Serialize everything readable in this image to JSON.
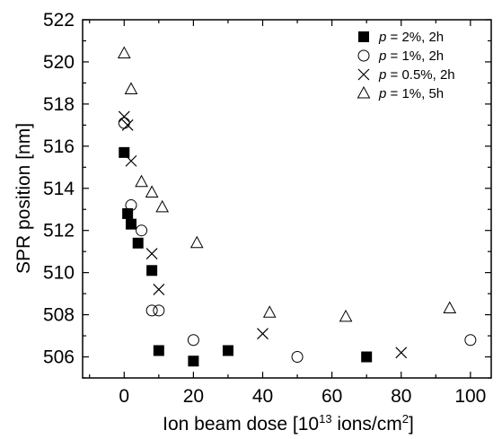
{
  "chart_data": {
    "type": "scatter",
    "xlabel": {
      "prefix": "Ion beam dose [10",
      "sup1": "13",
      "mid": " ions/cm",
      "sup2": "2",
      "suffix": "]"
    },
    "ylabel": "SPR position [nm]",
    "xlim": [
      -12,
      106
    ],
    "ylim": [
      505,
      522
    ],
    "x_ticks": [
      0,
      20,
      40,
      60,
      80,
      100
    ],
    "y_ticks": [
      506,
      508,
      510,
      512,
      514,
      516,
      518,
      520,
      522
    ],
    "grid": false,
    "legend_position": "top-right",
    "series": [
      {
        "name_var": "p",
        "name_rest": " = 2%, 2h",
        "marker": "filled-square",
        "points": [
          [
            0,
            515.7
          ],
          [
            1,
            512.8
          ],
          [
            2,
            512.3
          ],
          [
            4,
            511.4
          ],
          [
            8,
            510.1
          ],
          [
            10,
            506.3
          ],
          [
            20,
            505.8
          ],
          [
            30,
            506.3
          ],
          [
            70,
            506.0
          ]
        ]
      },
      {
        "name_var": "p",
        "name_rest": " = 1%, 2h",
        "marker": "open-circle",
        "points": [
          [
            0,
            517.1
          ],
          [
            2,
            513.2
          ],
          [
            5,
            512.0
          ],
          [
            8,
            508.2
          ],
          [
            10,
            508.2
          ],
          [
            20,
            506.8
          ],
          [
            50,
            506.0
          ],
          [
            100,
            506.8
          ]
        ]
      },
      {
        "name_var": "p",
        "name_rest": " = 0.5%, 2h",
        "marker": "x",
        "points": [
          [
            0,
            517.4
          ],
          [
            1,
            517.0
          ],
          [
            2,
            515.3
          ],
          [
            8,
            510.9
          ],
          [
            10,
            509.2
          ],
          [
            40,
            507.1
          ],
          [
            80,
            506.2
          ]
        ]
      },
      {
        "name_var": "p",
        "name_rest": " = 1%, 5h",
        "marker": "open-triangle",
        "points": [
          [
            0,
            520.4
          ],
          [
            2,
            518.7
          ],
          [
            5,
            514.3
          ],
          [
            8,
            513.8
          ],
          [
            11,
            513.1
          ],
          [
            21,
            511.4
          ],
          [
            42,
            508.1
          ],
          [
            64,
            507.9
          ],
          [
            94,
            508.3
          ]
        ]
      }
    ]
  }
}
